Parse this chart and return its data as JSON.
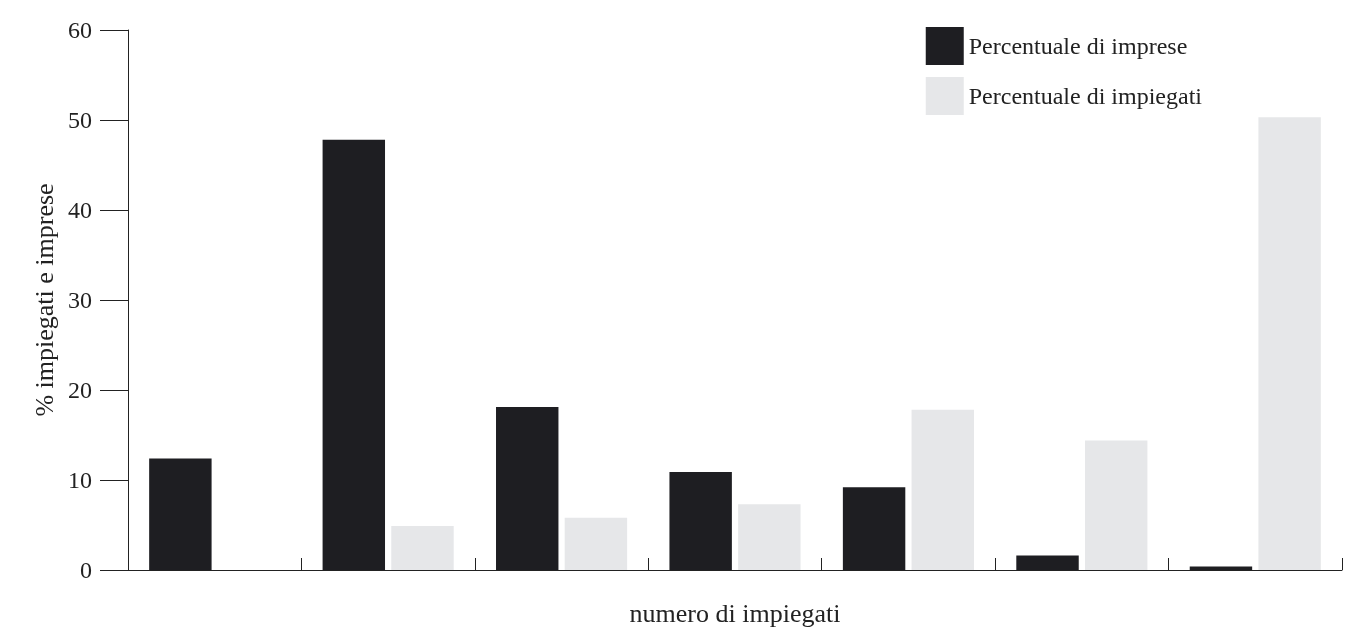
{
  "chart_data": {
    "type": "bar",
    "xlabel": "numero di impiegati",
    "ylabel": "% impiegati e imprese",
    "categories": [
      null,
      null,
      null,
      null,
      null,
      null,
      null
    ],
    "series": [
      {
        "name": "Percentuale di imprese",
        "color": "#1e1e22",
        "values": [
          12.4,
          47.8,
          18.1,
          10.9,
          9.2,
          1.6,
          0.4
        ]
      },
      {
        "name": "Percentuale di impiegati",
        "color": "#e6e7e9",
        "values": [
          0,
          4.9,
          5.8,
          7.3,
          17.8,
          14.4,
          50.3
        ]
      }
    ],
    "ylim": [
      0,
      60
    ],
    "yticks": [
      0,
      10,
      20,
      30,
      40,
      50,
      60
    ],
    "grid": false,
    "legend": "top right"
  }
}
